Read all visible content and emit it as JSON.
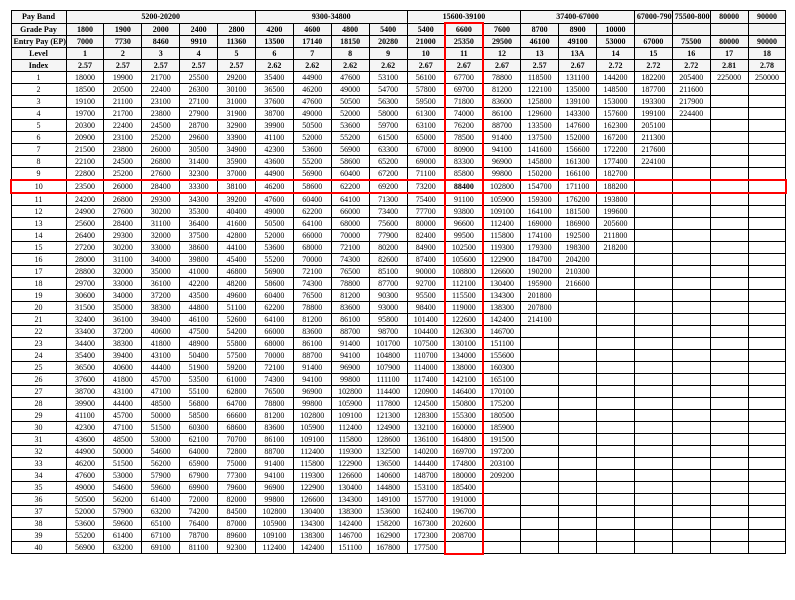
{
  "header_labels": [
    "Pay Band",
    "Grade Pay",
    "Entry Pay (EP)",
    "Level",
    "Index"
  ],
  "pay_band_groups": [
    {
      "label": "5200-20200",
      "span": 5
    },
    {
      "label": "9300-34800",
      "span": 4
    },
    {
      "label": "15600-39100",
      "span": 3
    },
    {
      "label": "37400-67000",
      "span": 3
    },
    {
      "label": "67000-79000",
      "span": 1
    },
    {
      "label": "75500-80000",
      "span": 1
    },
    {
      "label": "80000",
      "span": 1
    },
    {
      "label": "90000",
      "span": 1
    }
  ],
  "grade_pay": [
    "1800",
    "1900",
    "2000",
    "2400",
    "2800",
    "4200",
    "4600",
    "4800",
    "5400",
    "5400",
    "6600",
    "7600",
    "8700",
    "8900",
    "10000",
    "",
    "",
    "",
    ""
  ],
  "entry_pay": [
    "7000",
    "7730",
    "8460",
    "9910",
    "11360",
    "13500",
    "17140",
    "18150",
    "20280",
    "21000",
    "25350",
    "29500",
    "46100",
    "49100",
    "53000",
    "67000",
    "75500",
    "80000",
    "90000"
  ],
  "level": [
    "1",
    "2",
    "3",
    "4",
    "5",
    "6",
    "7",
    "8",
    "9",
    "10",
    "11",
    "12",
    "13",
    "13A",
    "14",
    "15",
    "16",
    "17",
    "18"
  ],
  "index": [
    "2.57",
    "2.57",
    "2.57",
    "2.57",
    "2.57",
    "2.62",
    "2.62",
    "2.62",
    "2.62",
    "2.67",
    "2.67",
    "2.67",
    "2.57",
    "2.67",
    "2.72",
    "2.72",
    "2.72",
    "2.81",
    "2.78"
  ],
  "highlight_column_index": 10,
  "highlight_row_index": 9,
  "highlight_cell_value": "88400",
  "rows": [
    [
      "18000",
      "19900",
      "21700",
      "25500",
      "29200",
      "35400",
      "44900",
      "47600",
      "53100",
      "56100",
      "67700",
      "78800",
      "118500",
      "131100",
      "144200",
      "182200",
      "205400",
      "225000",
      "250000"
    ],
    [
      "18500",
      "20500",
      "22400",
      "26300",
      "30100",
      "36500",
      "46200",
      "49000",
      "54700",
      "57800",
      "69700",
      "81200",
      "122100",
      "135000",
      "148500",
      "187700",
      "211600",
      "",
      ""
    ],
    [
      "19100",
      "21100",
      "23100",
      "27100",
      "31000",
      "37600",
      "47600",
      "50500",
      "56300",
      "59500",
      "71800",
      "83600",
      "125800",
      "139100",
      "153000",
      "193300",
      "217900",
      "",
      ""
    ],
    [
      "19700",
      "21700",
      "23800",
      "27900",
      "31900",
      "38700",
      "49000",
      "52000",
      "58000",
      "61300",
      "74000",
      "86100",
      "129600",
      "143300",
      "157600",
      "199100",
      "224400",
      "",
      ""
    ],
    [
      "20300",
      "22400",
      "24500",
      "28700",
      "32900",
      "39900",
      "50500",
      "53600",
      "59700",
      "63100",
      "76200",
      "88700",
      "133500",
      "147600",
      "162300",
      "205100",
      "",
      "",
      ""
    ],
    [
      "20900",
      "23100",
      "25200",
      "29600",
      "33900",
      "41100",
      "52000",
      "55200",
      "61500",
      "65000",
      "78500",
      "91400",
      "137500",
      "152000",
      "167200",
      "211300",
      "",
      "",
      ""
    ],
    [
      "21500",
      "23800",
      "26000",
      "30500",
      "34900",
      "42300",
      "53600",
      "56900",
      "63300",
      "67000",
      "80900",
      "94100",
      "141600",
      "156600",
      "172200",
      "217600",
      "",
      "",
      ""
    ],
    [
      "22100",
      "24500",
      "26800",
      "31400",
      "35900",
      "43600",
      "55200",
      "58600",
      "65200",
      "69000",
      "83300",
      "96900",
      "145800",
      "161300",
      "177400",
      "224100",
      "",
      "",
      ""
    ],
    [
      "22800",
      "25200",
      "27600",
      "32300",
      "37000",
      "44900",
      "56900",
      "60400",
      "67200",
      "71100",
      "85800",
      "99800",
      "150200",
      "166100",
      "182700",
      "",
      "",
      "",
      ""
    ],
    [
      "23500",
      "26000",
      "28400",
      "33300",
      "38100",
      "46200",
      "58600",
      "62200",
      "69200",
      "73200",
      "88400",
      "102800",
      "154700",
      "171100",
      "188200",
      "",
      "",
      "",
      ""
    ],
    [
      "24200",
      "26800",
      "29300",
      "34300",
      "39200",
      "47600",
      "60400",
      "64100",
      "71300",
      "75400",
      "91100",
      "105900",
      "159300",
      "176200",
      "193800",
      "",
      "",
      "",
      ""
    ],
    [
      "24900",
      "27600",
      "30200",
      "35300",
      "40400",
      "49000",
      "62200",
      "66000",
      "73400",
      "77700",
      "93800",
      "109100",
      "164100",
      "181500",
      "199600",
      "",
      "",
      "",
      ""
    ],
    [
      "25600",
      "28400",
      "31100",
      "36400",
      "41600",
      "50500",
      "64100",
      "68000",
      "75600",
      "80000",
      "96600",
      "112400",
      "169000",
      "186900",
      "205600",
      "",
      "",
      "",
      ""
    ],
    [
      "26400",
      "29300",
      "32000",
      "37500",
      "42800",
      "52000",
      "66000",
      "70000",
      "77900",
      "82400",
      "99500",
      "115800",
      "174100",
      "192500",
      "211800",
      "",
      "",
      "",
      ""
    ],
    [
      "27200",
      "30200",
      "33000",
      "38600",
      "44100",
      "53600",
      "68000",
      "72100",
      "80200",
      "84900",
      "102500",
      "119300",
      "179300",
      "198300",
      "218200",
      "",
      "",
      "",
      ""
    ],
    [
      "28000",
      "31100",
      "34000",
      "39800",
      "45400",
      "55200",
      "70000",
      "74300",
      "82600",
      "87400",
      "105600",
      "122900",
      "184700",
      "204200",
      "",
      "",
      "",
      "",
      ""
    ],
    [
      "28800",
      "32000",
      "35000",
      "41000",
      "46800",
      "56900",
      "72100",
      "76500",
      "85100",
      "90000",
      "108800",
      "126600",
      "190200",
      "210300",
      "",
      "",
      "",
      "",
      ""
    ],
    [
      "29700",
      "33000",
      "36100",
      "42200",
      "48200",
      "58600",
      "74300",
      "78800",
      "87700",
      "92700",
      "112100",
      "130400",
      "195900",
      "216600",
      "",
      "",
      "",
      "",
      ""
    ],
    [
      "30600",
      "34000",
      "37200",
      "43500",
      "49600",
      "60400",
      "76500",
      "81200",
      "90300",
      "95500",
      "115500",
      "134300",
      "201800",
      "",
      "",
      "",
      "",
      "",
      ""
    ],
    [
      "31500",
      "35000",
      "38300",
      "44800",
      "51100",
      "62200",
      "78800",
      "83600",
      "93000",
      "98400",
      "119000",
      "138300",
      "207800",
      "",
      "",
      "",
      "",
      "",
      ""
    ],
    [
      "32400",
      "36100",
      "39400",
      "46100",
      "52600",
      "64100",
      "81200",
      "86100",
      "95800",
      "101400",
      "122600",
      "142400",
      "214100",
      "",
      "",
      "",
      "",
      "",
      ""
    ],
    [
      "33400",
      "37200",
      "40600",
      "47500",
      "54200",
      "66000",
      "83600",
      "88700",
      "98700",
      "104400",
      "126300",
      "146700",
      "",
      "",
      "",
      "",
      "",
      "",
      ""
    ],
    [
      "34400",
      "38300",
      "41800",
      "48900",
      "55800",
      "68000",
      "86100",
      "91400",
      "101700",
      "107500",
      "130100",
      "151100",
      "",
      "",
      "",
      "",
      "",
      "",
      ""
    ],
    [
      "35400",
      "39400",
      "43100",
      "50400",
      "57500",
      "70000",
      "88700",
      "94100",
      "104800",
      "110700",
      "134000",
      "155600",
      "",
      "",
      "",
      "",
      "",
      "",
      ""
    ],
    [
      "36500",
      "40600",
      "44400",
      "51900",
      "59200",
      "72100",
      "91400",
      "96900",
      "107900",
      "114000",
      "138000",
      "160300",
      "",
      "",
      "",
      "",
      "",
      "",
      ""
    ],
    [
      "37600",
      "41800",
      "45700",
      "53500",
      "61000",
      "74300",
      "94100",
      "99800",
      "111100",
      "117400",
      "142100",
      "165100",
      "",
      "",
      "",
      "",
      "",
      "",
      ""
    ],
    [
      "38700",
      "43100",
      "47100",
      "55100",
      "62800",
      "76500",
      "96900",
      "102800",
      "114400",
      "120900",
      "146400",
      "170100",
      "",
      "",
      "",
      "",
      "",
      "",
      ""
    ],
    [
      "39900",
      "44400",
      "48500",
      "56800",
      "64700",
      "78800",
      "99800",
      "105900",
      "117800",
      "124500",
      "150800",
      "175200",
      "",
      "",
      "",
      "",
      "",
      "",
      ""
    ],
    [
      "41100",
      "45700",
      "50000",
      "58500",
      "66600",
      "81200",
      "102800",
      "109100",
      "121300",
      "128300",
      "155300",
      "180500",
      "",
      "",
      "",
      "",
      "",
      "",
      ""
    ],
    [
      "42300",
      "47100",
      "51500",
      "60300",
      "68600",
      "83600",
      "105900",
      "112400",
      "124900",
      "132100",
      "160000",
      "185900",
      "",
      "",
      "",
      "",
      "",
      "",
      ""
    ],
    [
      "43600",
      "48500",
      "53000",
      "62100",
      "70700",
      "86100",
      "109100",
      "115800",
      "128600",
      "136100",
      "164800",
      "191500",
      "",
      "",
      "",
      "",
      "",
      "",
      ""
    ],
    [
      "44900",
      "50000",
      "54600",
      "64000",
      "72800",
      "88700",
      "112400",
      "119300",
      "132500",
      "140200",
      "169700",
      "197200",
      "",
      "",
      "",
      "",
      "",
      "",
      ""
    ],
    [
      "46200",
      "51500",
      "56200",
      "65900",
      "75000",
      "91400",
      "115800",
      "122900",
      "136500",
      "144400",
      "174800",
      "203100",
      "",
      "",
      "",
      "",
      "",
      "",
      ""
    ],
    [
      "47600",
      "53000",
      "57900",
      "67900",
      "77300",
      "94100",
      "119300",
      "126600",
      "140600",
      "148700",
      "180000",
      "209200",
      "",
      "",
      "",
      "",
      "",
      "",
      ""
    ],
    [
      "49000",
      "54600",
      "59600",
      "69900",
      "79600",
      "96900",
      "122900",
      "130400",
      "144800",
      "153100",
      "185400",
      "",
      "",
      "",
      "",
      "",
      "",
      "",
      ""
    ],
    [
      "50500",
      "56200",
      "61400",
      "72000",
      "82000",
      "99800",
      "126600",
      "134300",
      "149100",
      "157700",
      "191000",
      "",
      "",
      "",
      "",
      "",
      "",
      "",
      ""
    ],
    [
      "52000",
      "57900",
      "63200",
      "74200",
      "84500",
      "102800",
      "130400",
      "138300",
      "153600",
      "162400",
      "196700",
      "",
      "",
      "",
      "",
      "",
      "",
      "",
      ""
    ],
    [
      "53600",
      "59600",
      "65100",
      "76400",
      "87000",
      "105900",
      "134300",
      "142400",
      "158200",
      "167300",
      "202600",
      "",
      "",
      "",
      "",
      "",
      "",
      "",
      ""
    ],
    [
      "55200",
      "61400",
      "67100",
      "78700",
      "89600",
      "109100",
      "138300",
      "146700",
      "162900",
      "172300",
      "208700",
      "",
      "",
      "",
      "",
      "",
      "",
      "",
      ""
    ],
    [
      "56900",
      "63200",
      "69100",
      "81100",
      "92300",
      "112400",
      "142400",
      "151100",
      "167800",
      "177500",
      "",
      "",
      "",
      "",
      "",
      "",
      "",
      "",
      ""
    ]
  ],
  "colors": {
    "border": "#000000",
    "highlight": "#ff0000",
    "header_bg": "#f5f5f5",
    "background": "#ffffff"
  }
}
